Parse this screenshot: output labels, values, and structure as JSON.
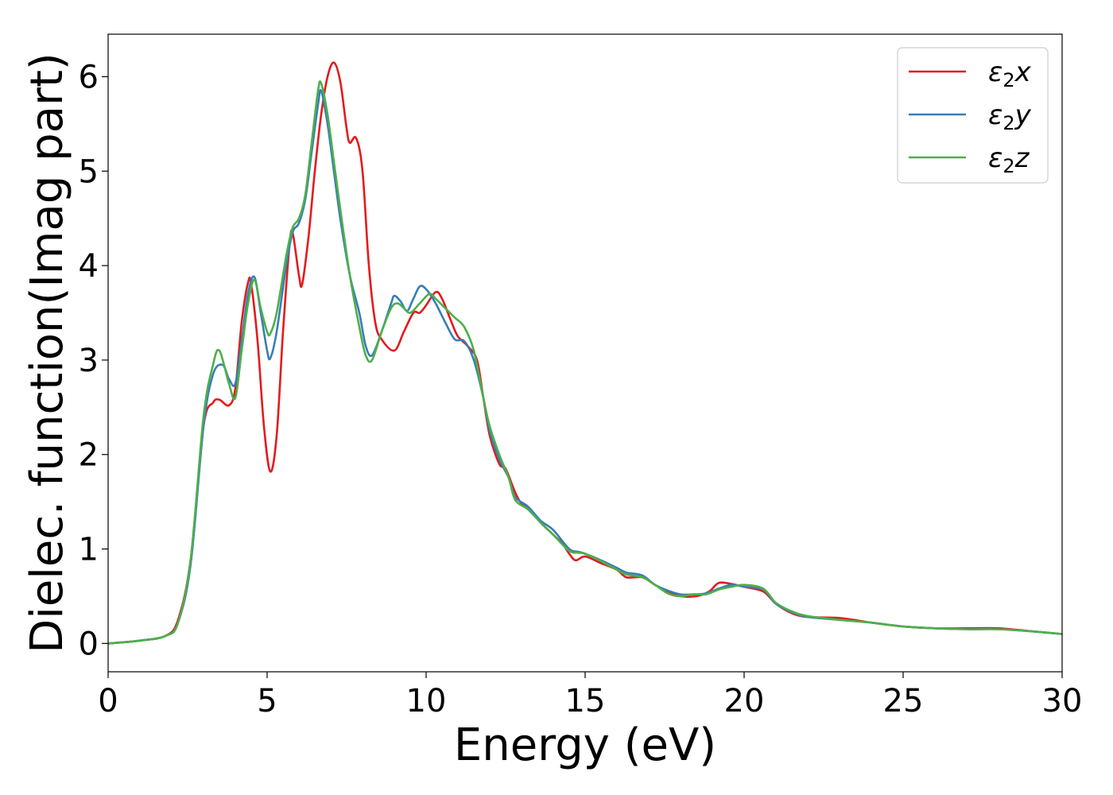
{
  "chart_data": {
    "type": "line",
    "title": "",
    "xlabel": "Energy (eV)",
    "ylabel": "Dielec. function(Imag part)",
    "xlim": [
      0,
      30
    ],
    "ylim": [
      -0.3,
      6.45
    ],
    "xticks": [
      0,
      5,
      10,
      15,
      20,
      25,
      30
    ],
    "yticks": [
      0,
      1,
      2,
      3,
      4,
      5,
      6
    ],
    "xtick_labels": [
      "0",
      "5",
      "10",
      "15",
      "20",
      "25",
      "30"
    ],
    "ytick_labels": [
      "0",
      "1",
      "2",
      "3",
      "4",
      "5",
      "6"
    ],
    "grid": false,
    "legend_position": "top-right",
    "series": [
      {
        "name": "ε2x",
        "legend_base": "ε",
        "legend_sub": "2",
        "legend_tail": "x",
        "color": "#e41a1c",
        "points": [
          [
            0,
            0
          ],
          [
            1,
            0.03
          ],
          [
            1.8,
            0.08
          ],
          [
            2.2,
            0.25
          ],
          [
            2.6,
            0.9
          ],
          [
            3.0,
            2.3
          ],
          [
            3.3,
            2.55
          ],
          [
            3.5,
            2.58
          ],
          [
            3.8,
            2.52
          ],
          [
            4.0,
            2.7
          ],
          [
            4.2,
            3.4
          ],
          [
            4.4,
            3.82
          ],
          [
            4.5,
            3.8
          ],
          [
            4.7,
            3.2
          ],
          [
            4.9,
            2.3
          ],
          [
            5.1,
            1.82
          ],
          [
            5.3,
            2.2
          ],
          [
            5.5,
            3.3
          ],
          [
            5.7,
            4.2
          ],
          [
            5.8,
            4.35
          ],
          [
            6.0,
            3.9
          ],
          [
            6.1,
            3.8
          ],
          [
            6.3,
            4.3
          ],
          [
            6.5,
            5.0
          ],
          [
            6.7,
            5.6
          ],
          [
            6.9,
            6.0
          ],
          [
            7.1,
            6.15
          ],
          [
            7.3,
            5.95
          ],
          [
            7.5,
            5.45
          ],
          [
            7.6,
            5.3
          ],
          [
            7.8,
            5.35
          ],
          [
            8.0,
            5.0
          ],
          [
            8.2,
            4.0
          ],
          [
            8.4,
            3.4
          ],
          [
            8.6,
            3.22
          ],
          [
            9.0,
            3.1
          ],
          [
            9.3,
            3.3
          ],
          [
            9.6,
            3.5
          ],
          [
            9.8,
            3.5
          ],
          [
            10.0,
            3.58
          ],
          [
            10.3,
            3.72
          ],
          [
            10.5,
            3.65
          ],
          [
            10.8,
            3.4
          ],
          [
            11.0,
            3.25
          ],
          [
            11.3,
            3.15
          ],
          [
            11.6,
            3.0
          ],
          [
            11.8,
            2.6
          ],
          [
            12.0,
            2.2
          ],
          [
            12.3,
            1.9
          ],
          [
            12.5,
            1.85
          ],
          [
            12.8,
            1.6
          ],
          [
            13.0,
            1.48
          ],
          [
            13.3,
            1.4
          ],
          [
            13.6,
            1.28
          ],
          [
            14.0,
            1.15
          ],
          [
            14.3,
            1.05
          ],
          [
            14.5,
            0.95
          ],
          [
            14.7,
            0.88
          ],
          [
            15.0,
            0.92
          ],
          [
            15.5,
            0.85
          ],
          [
            16.0,
            0.78
          ],
          [
            16.3,
            0.7
          ],
          [
            16.8,
            0.7
          ],
          [
            17.2,
            0.62
          ],
          [
            17.6,
            0.55
          ],
          [
            18.0,
            0.5
          ],
          [
            18.5,
            0.5
          ],
          [
            18.9,
            0.55
          ],
          [
            19.2,
            0.64
          ],
          [
            19.6,
            0.63
          ],
          [
            20.0,
            0.6
          ],
          [
            20.6,
            0.55
          ],
          [
            21.0,
            0.42
          ],
          [
            21.5,
            0.32
          ],
          [
            22.0,
            0.28
          ],
          [
            23.0,
            0.27
          ],
          [
            24.0,
            0.22
          ],
          [
            25.0,
            0.18
          ],
          [
            26.0,
            0.16
          ],
          [
            27.0,
            0.16
          ],
          [
            28.0,
            0.16
          ],
          [
            29.0,
            0.13
          ],
          [
            30.0,
            0.1
          ]
        ]
      },
      {
        "name": "ε2y",
        "legend_base": "ε",
        "legend_sub": "2",
        "legend_tail": "y",
        "color": "#377eb8",
        "points": [
          [
            0,
            0
          ],
          [
            1,
            0.03
          ],
          [
            1.8,
            0.08
          ],
          [
            2.2,
            0.22
          ],
          [
            2.6,
            0.85
          ],
          [
            3.0,
            2.3
          ],
          [
            3.3,
            2.85
          ],
          [
            3.6,
            2.95
          ],
          [
            3.8,
            2.8
          ],
          [
            4.0,
            2.75
          ],
          [
            4.2,
            3.2
          ],
          [
            4.4,
            3.7
          ],
          [
            4.6,
            3.88
          ],
          [
            4.8,
            3.5
          ],
          [
            5.0,
            3.1
          ],
          [
            5.1,
            3.02
          ],
          [
            5.3,
            3.3
          ],
          [
            5.6,
            4.0
          ],
          [
            5.8,
            4.35
          ],
          [
            6.0,
            4.45
          ],
          [
            6.2,
            4.7
          ],
          [
            6.4,
            5.2
          ],
          [
            6.6,
            5.7
          ],
          [
            6.7,
            5.85
          ],
          [
            6.9,
            5.5
          ],
          [
            7.1,
            5.0
          ],
          [
            7.3,
            4.5
          ],
          [
            7.6,
            3.9
          ],
          [
            7.9,
            3.5
          ],
          [
            8.1,
            3.15
          ],
          [
            8.3,
            3.05
          ],
          [
            8.6,
            3.3
          ],
          [
            8.9,
            3.6
          ],
          [
            9.0,
            3.68
          ],
          [
            9.2,
            3.62
          ],
          [
            9.4,
            3.52
          ],
          [
            9.6,
            3.65
          ],
          [
            9.8,
            3.78
          ],
          [
            10.0,
            3.75
          ],
          [
            10.3,
            3.6
          ],
          [
            10.6,
            3.4
          ],
          [
            10.9,
            3.22
          ],
          [
            11.2,
            3.2
          ],
          [
            11.5,
            3.0
          ],
          [
            11.8,
            2.6
          ],
          [
            12.0,
            2.25
          ],
          [
            12.3,
            1.95
          ],
          [
            12.6,
            1.75
          ],
          [
            12.8,
            1.55
          ],
          [
            13.2,
            1.45
          ],
          [
            13.6,
            1.3
          ],
          [
            14.0,
            1.2
          ],
          [
            14.5,
            1.0
          ],
          [
            14.8,
            0.97
          ],
          [
            15.0,
            0.95
          ],
          [
            15.5,
            0.88
          ],
          [
            16.0,
            0.8
          ],
          [
            16.3,
            0.75
          ],
          [
            16.8,
            0.72
          ],
          [
            17.2,
            0.62
          ],
          [
            17.6,
            0.56
          ],
          [
            18.0,
            0.52
          ],
          [
            18.4,
            0.52
          ],
          [
            18.8,
            0.53
          ],
          [
            19.2,
            0.58
          ],
          [
            19.6,
            0.62
          ],
          [
            20.0,
            0.6
          ],
          [
            20.6,
            0.57
          ],
          [
            21.0,
            0.42
          ],
          [
            21.5,
            0.33
          ],
          [
            22.0,
            0.28
          ],
          [
            23.0,
            0.25
          ],
          [
            24.0,
            0.22
          ],
          [
            25.0,
            0.18
          ],
          [
            26.0,
            0.16
          ],
          [
            27.0,
            0.15
          ],
          [
            28.0,
            0.15
          ],
          [
            29.0,
            0.13
          ],
          [
            30.0,
            0.1
          ]
        ]
      },
      {
        "name": "ε2z",
        "legend_base": "ε",
        "legend_sub": "2",
        "legend_tail": "z",
        "color": "#4daf4a",
        "points": [
          [
            0,
            0
          ],
          [
            1,
            0.03
          ],
          [
            1.8,
            0.08
          ],
          [
            2.2,
            0.22
          ],
          [
            2.6,
            0.9
          ],
          [
            3.0,
            2.4
          ],
          [
            3.3,
            2.95
          ],
          [
            3.5,
            3.1
          ],
          [
            3.8,
            2.75
          ],
          [
            4.0,
            2.6
          ],
          [
            4.2,
            3.1
          ],
          [
            4.4,
            3.6
          ],
          [
            4.6,
            3.85
          ],
          [
            4.8,
            3.55
          ],
          [
            5.0,
            3.3
          ],
          [
            5.1,
            3.28
          ],
          [
            5.3,
            3.5
          ],
          [
            5.6,
            4.1
          ],
          [
            5.8,
            4.4
          ],
          [
            6.0,
            4.5
          ],
          [
            6.2,
            4.75
          ],
          [
            6.4,
            5.3
          ],
          [
            6.6,
            5.85
          ],
          [
            6.7,
            5.93
          ],
          [
            6.9,
            5.6
          ],
          [
            7.1,
            5.1
          ],
          [
            7.3,
            4.6
          ],
          [
            7.6,
            3.9
          ],
          [
            7.9,
            3.35
          ],
          [
            8.1,
            3.05
          ],
          [
            8.3,
            3.0
          ],
          [
            8.6,
            3.3
          ],
          [
            8.9,
            3.55
          ],
          [
            9.1,
            3.6
          ],
          [
            9.3,
            3.55
          ],
          [
            9.5,
            3.5
          ],
          [
            9.8,
            3.6
          ],
          [
            10.1,
            3.7
          ],
          [
            10.3,
            3.65
          ],
          [
            10.6,
            3.55
          ],
          [
            10.9,
            3.45
          ],
          [
            11.2,
            3.35
          ],
          [
            11.5,
            3.1
          ],
          [
            11.8,
            2.6
          ],
          [
            12.0,
            2.3
          ],
          [
            12.3,
            2.0
          ],
          [
            12.6,
            1.75
          ],
          [
            12.8,
            1.52
          ],
          [
            13.2,
            1.42
          ],
          [
            13.6,
            1.28
          ],
          [
            14.0,
            1.15
          ],
          [
            14.5,
            0.98
          ],
          [
            14.8,
            0.96
          ],
          [
            15.0,
            0.95
          ],
          [
            15.5,
            0.87
          ],
          [
            16.0,
            0.78
          ],
          [
            16.3,
            0.73
          ],
          [
            16.8,
            0.7
          ],
          [
            17.2,
            0.62
          ],
          [
            17.6,
            0.53
          ],
          [
            18.0,
            0.5
          ],
          [
            18.4,
            0.52
          ],
          [
            18.8,
            0.52
          ],
          [
            19.2,
            0.57
          ],
          [
            19.6,
            0.6
          ],
          [
            20.0,
            0.62
          ],
          [
            20.6,
            0.58
          ],
          [
            21.0,
            0.43
          ],
          [
            21.5,
            0.34
          ],
          [
            22.0,
            0.29
          ],
          [
            23.0,
            0.25
          ],
          [
            24.0,
            0.22
          ],
          [
            25.0,
            0.18
          ],
          [
            26.0,
            0.16
          ],
          [
            27.0,
            0.15
          ],
          [
            28.0,
            0.15
          ],
          [
            29.0,
            0.13
          ],
          [
            30.0,
            0.1
          ]
        ]
      }
    ]
  }
}
